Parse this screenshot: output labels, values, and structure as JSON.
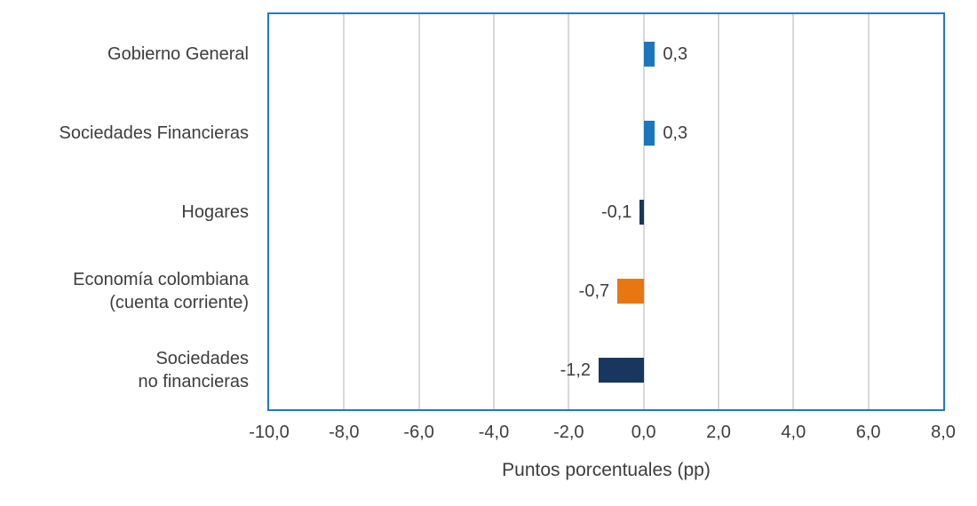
{
  "chart_data": {
    "type": "bar",
    "orientation": "horizontal",
    "title": "",
    "xlabel": "Puntos porcentuales (pp)",
    "ylabel": "",
    "xlim": [
      -10,
      8
    ],
    "grid": "vertical-gridlines",
    "legend": "none",
    "categories": [
      "Gobierno General",
      "Sociedades Financieras",
      "Hogares",
      "Economía colombiana\n(cuenta corriente)",
      "Sociedades\nno financieras"
    ],
    "values": [
      0.3,
      0.3,
      -0.1,
      -0.7,
      -1.2
    ],
    "value_labels": [
      "0,3",
      "0,3",
      "-0,1",
      "-0,7",
      "-1,2"
    ],
    "bar_colors": [
      "#1b76bd",
      "#1b76bd",
      "#17375e",
      "#e87711",
      "#17375e"
    ],
    "x_ticks": [
      {
        "value": -10,
        "label": "-10,0"
      },
      {
        "value": -8,
        "label": "-8,0"
      },
      {
        "value": -6,
        "label": "-6,0"
      },
      {
        "value": -4,
        "label": "-4,0"
      },
      {
        "value": -2,
        "label": "-2,0"
      },
      {
        "value": 0,
        "label": "0,0"
      },
      {
        "value": 2,
        "label": "2,0"
      },
      {
        "value": 4,
        "label": "4,0"
      },
      {
        "value": 6,
        "label": "6,0"
      },
      {
        "value": 8,
        "label": "8,0"
      }
    ]
  },
  "style": {
    "plot_border_color": "#2379c2",
    "gridline_color": "#d9d9d9",
    "text_color": "#3d3d3d",
    "background": "#ffffff",
    "positive_bar_color": "#1b76bd",
    "negative_dark_bar_color": "#17375e",
    "highlight_bar_color": "#e87711"
  }
}
